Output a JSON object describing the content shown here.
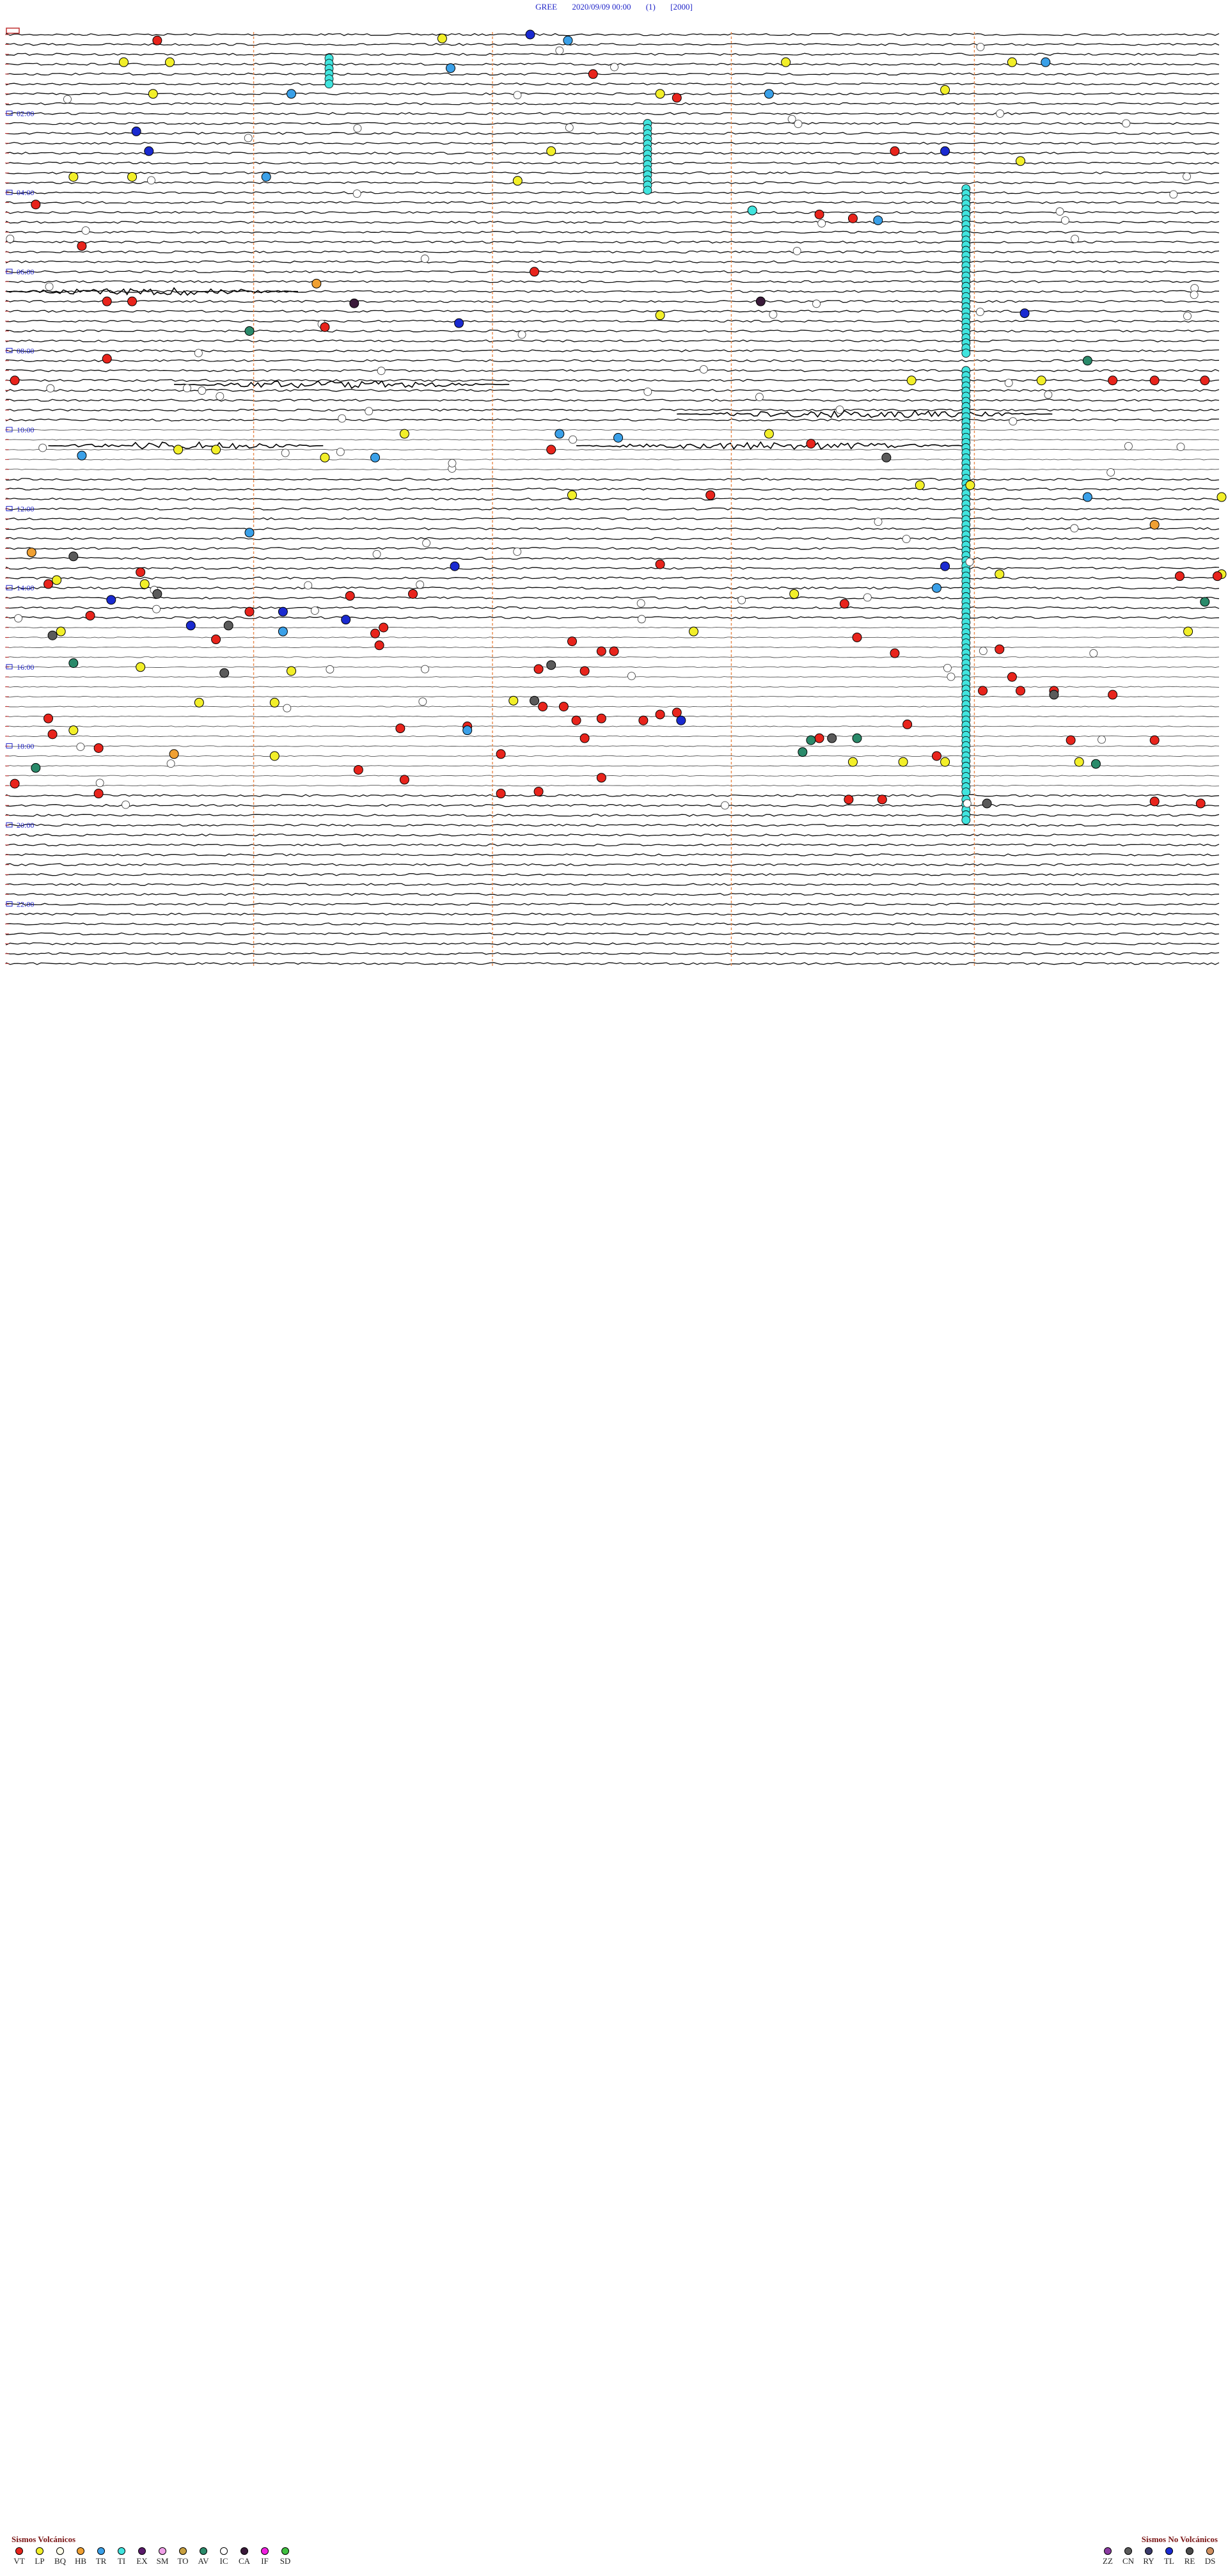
{
  "header": {
    "station": "GREE",
    "datetime": "2020/09/09 00:00",
    "component": "(1)",
    "scale": "[2000]"
  },
  "chart_data": {
    "type": "helicorder",
    "station": "GREE",
    "start": "2020/09/09 00:00",
    "lines_per_hour": 4,
    "hour_labels": [
      "02:00",
      "04:00",
      "06:00",
      "08:00",
      "10:00",
      "12:00",
      "14:00",
      "16:00",
      "18:00",
      "20:00",
      "22:00"
    ],
    "minute_ticks": [
      15,
      30,
      45
    ],
    "event_colors": {
      "VT": "#e8241c",
      "LP": "#f2ef29",
      "BQ": "#fdfde8",
      "HB": "#f0a032",
      "TR": "#3aa0e8",
      "TI": "#40e4de",
      "EX": "#5a1a6a",
      "SM": "#f0a0e8",
      "TO": "#c8a040",
      "AV": "#2a8a6a",
      "IC": "#ffffff",
      "CA": "#3a1a3a",
      "IF": "#f020e0",
      "SD": "#40c040",
      "ZZ": "#8a3aa0",
      "CN": "#5a5a5a",
      "RY": "#3a3a6a",
      "TL": "#1a2ad0",
      "RE": "#4a4a4a",
      "DS": "#d09060"
    },
    "events": [
      {
        "type": "VT",
        "hour": 0.15,
        "minute": 18.0
      },
      {
        "type": "TL",
        "hour": 0.0,
        "minute": 62.5
      },
      {
        "type": "TR",
        "hour": 0.15,
        "minute": 67.0
      },
      {
        "type": "LP",
        "hour": 0.1,
        "minute": 52.0
      },
      {
        "type": "LP",
        "hour": 0.7,
        "minute": 14.0
      },
      {
        "type": "LP",
        "hour": 0.7,
        "minute": 19.5
      },
      {
        "type": "LP",
        "hour": 0.7,
        "minute": 93.0
      },
      {
        "type": "LP",
        "hour": 0.7,
        "minute": 120.0
      },
      {
        "type": "TR",
        "hour": 0.7,
        "minute": 124.0
      },
      {
        "type": "VT",
        "hour": 1.0,
        "minute": 70.0
      },
      {
        "type": "TR",
        "hour": 0.85,
        "minute": 53.0
      },
      {
        "type": "LP",
        "hour": 1.5,
        "minute": 17.5
      },
      {
        "type": "TR",
        "hour": 1.5,
        "minute": 34.0
      },
      {
        "type": "VT",
        "hour": 1.6,
        "minute": 80.0
      },
      {
        "type": "LP",
        "hour": 1.5,
        "minute": 78.0
      },
      {
        "type": "TR",
        "hour": 1.5,
        "minute": 91.0
      },
      {
        "type": "LP",
        "hour": 1.4,
        "minute": 112.0
      },
      {
        "type": "TL",
        "hour": 2.45,
        "minute": 15.5
      },
      {
        "type": "TL",
        "hour": 2.95,
        "minute": 17.0
      },
      {
        "type": "VT",
        "hour": 2.95,
        "minute": 106.0
      },
      {
        "type": "TL",
        "hour": 2.95,
        "minute": 112.0
      },
      {
        "type": "LP",
        "hour": 2.95,
        "minute": 65.0
      },
      {
        "type": "LP",
        "hour": 3.6,
        "minute": 8.0
      },
      {
        "type": "LP",
        "hour": 3.6,
        "minute": 15.0
      },
      {
        "type": "TR",
        "hour": 3.6,
        "minute": 31.0
      },
      {
        "type": "LP",
        "hour": 3.7,
        "minute": 61.0
      },
      {
        "type": "LP",
        "hour": 3.2,
        "minute": 121.0
      },
      {
        "type": "VT",
        "hour": 4.3,
        "minute": 3.5
      },
      {
        "type": "VT",
        "hour": 4.55,
        "minute": 97.0
      },
      {
        "type": "VT",
        "hour": 4.65,
        "minute": 101.0
      },
      {
        "type": "TR",
        "hour": 4.7,
        "minute": 104.0
      },
      {
        "type": "TI",
        "hour": 4.45,
        "minute": 89.0
      },
      {
        "type": "VT",
        "hour": 5.35,
        "minute": 9.0
      },
      {
        "type": "VT",
        "hour": 6.0,
        "minute": 63.0
      },
      {
        "type": "HB",
        "hour": 6.3,
        "minute": 37.0
      },
      {
        "type": "VT",
        "hour": 6.75,
        "minute": 12.0
      },
      {
        "type": "VT",
        "hour": 6.75,
        "minute": 15.0
      },
      {
        "type": "CA",
        "hour": 6.8,
        "minute": 41.5
      },
      {
        "type": "CA",
        "hour": 6.75,
        "minute": 90.0
      },
      {
        "type": "TL",
        "hour": 7.05,
        "minute": 121.5
      },
      {
        "type": "LP",
        "hour": 7.1,
        "minute": 78.0
      },
      {
        "type": "TL",
        "hour": 7.3,
        "minute": 54.0
      },
      {
        "type": "VT",
        "hour": 7.4,
        "minute": 38.0
      },
      {
        "type": "AV",
        "hour": 7.5,
        "minute": 29.0
      },
      {
        "type": "VT",
        "hour": 8.2,
        "minute": 12.0
      },
      {
        "type": "AV",
        "hour": 8.25,
        "minute": 129.0
      },
      {
        "type": "VT",
        "hour": 8.75,
        "minute": 1.0
      },
      {
        "type": "VT",
        "hour": 8.75,
        "minute": 132.0
      },
      {
        "type": "VT",
        "hour": 8.75,
        "minute": 137.0
      },
      {
        "type": "VT",
        "hour": 8.75,
        "minute": 143.0
      },
      {
        "type": "LP",
        "hour": 8.75,
        "minute": 108.0
      },
      {
        "type": "LP",
        "hour": 8.75,
        "minute": 123.5
      },
      {
        "type": "LP",
        "hour": 10.1,
        "minute": 47.5
      },
      {
        "type": "TR",
        "hour": 10.1,
        "minute": 66.0
      },
      {
        "type": "TR",
        "hour": 10.2,
        "minute": 73.0
      },
      {
        "type": "LP",
        "hour": 10.1,
        "minute": 91.0
      },
      {
        "type": "VT",
        "hour": 10.35,
        "minute": 96.0
      },
      {
        "type": "LP",
        "hour": 10.5,
        "minute": 20.5
      },
      {
        "type": "LP",
        "hour": 10.5,
        "minute": 25.0
      },
      {
        "type": "VT",
        "hour": 10.5,
        "minute": 65.0
      },
      {
        "type": "TR",
        "hour": 10.65,
        "minute": 9.0
      },
      {
        "type": "TR",
        "hour": 10.7,
        "minute": 44.0
      },
      {
        "type": "LP",
        "hour": 10.7,
        "minute": 38.0
      },
      {
        "type": "CN",
        "hour": 10.7,
        "minute": 105.0
      },
      {
        "type": "LP",
        "hour": 11.4,
        "minute": 109.0
      },
      {
        "type": "LP",
        "hour": 11.4,
        "minute": 115.0
      },
      {
        "type": "VT",
        "hour": 11.65,
        "minute": 84.0
      },
      {
        "type": "LP",
        "hour": 11.65,
        "minute": 67.5
      },
      {
        "type": "TR",
        "hour": 11.7,
        "minute": 129.0
      },
      {
        "type": "LP",
        "hour": 11.7,
        "minute": 145.0
      },
      {
        "type": "HB",
        "hour": 12.4,
        "minute": 137.0
      },
      {
        "type": "TR",
        "hour": 12.6,
        "minute": 29.0
      },
      {
        "type": "HB",
        "hour": 13.1,
        "minute": 3.0
      },
      {
        "type": "CN",
        "hour": 13.2,
        "minute": 8.0
      },
      {
        "type": "TL",
        "hour": 13.45,
        "minute": 53.5
      },
      {
        "type": "VT",
        "hour": 13.4,
        "minute": 78.0
      },
      {
        "type": "TL",
        "hour": 13.45,
        "minute": 112.0
      },
      {
        "type": "VT",
        "hour": 13.6,
        "minute": 16.0
      },
      {
        "type": "LP",
        "hour": 13.8,
        "minute": 6.0
      },
      {
        "type": "LP",
        "hour": 13.9,
        "minute": 16.5
      },
      {
        "type": "VT",
        "hour": 13.9,
        "minute": 5.0
      },
      {
        "type": "TR",
        "hour": 14.0,
        "minute": 111.0
      },
      {
        "type": "LP",
        "hour": 13.65,
        "minute": 118.5
      },
      {
        "type": "LP",
        "hour": 13.65,
        "minute": 145.0
      },
      {
        "type": "VT",
        "hour": 13.7,
        "minute": 140.0
      },
      {
        "type": "VT",
        "hour": 13.7,
        "minute": 144.5
      },
      {
        "type": "CN",
        "hour": 14.15,
        "minute": 18.0
      },
      {
        "type": "VT",
        "hour": 14.2,
        "minute": 41.0
      },
      {
        "type": "VT",
        "hour": 14.15,
        "minute": 48.5
      },
      {
        "type": "TL",
        "hour": 14.3,
        "minute": 12.5
      },
      {
        "type": "LP",
        "hour": 14.15,
        "minute": 94.0
      },
      {
        "type": "VT",
        "hour": 14.4,
        "minute": 100.0
      },
      {
        "type": "AV",
        "hour": 14.35,
        "minute": 143.0
      },
      {
        "type": "VT",
        "hour": 14.6,
        "minute": 29.0
      },
      {
        "type": "TL",
        "hour": 14.6,
        "minute": 33.0
      },
      {
        "type": "TL",
        "hour": 14.8,
        "minute": 40.5
      },
      {
        "type": "VT",
        "hour": 14.7,
        "minute": 10.0
      },
      {
        "type": "TL",
        "hour": 14.95,
        "minute": 22.0
      },
      {
        "type": "CN",
        "hour": 14.95,
        "minute": 26.5
      },
      {
        "type": "VT",
        "hour": 15.0,
        "minute": 45.0
      },
      {
        "type": "LP",
        "hour": 15.1,
        "minute": 6.5
      },
      {
        "type": "CN",
        "hour": 15.2,
        "minute": 5.5
      },
      {
        "type": "TR",
        "hour": 15.1,
        "minute": 33.0
      },
      {
        "type": "VT",
        "hour": 15.15,
        "minute": 44.0
      },
      {
        "type": "VT",
        "hour": 15.3,
        "minute": 25.0
      },
      {
        "type": "VT",
        "hour": 15.25,
        "minute": 101.5
      },
      {
        "type": "LP",
        "hour": 15.1,
        "minute": 82.0
      },
      {
        "type": "LP",
        "hour": 15.1,
        "minute": 141.0
      },
      {
        "type": "VT",
        "hour": 15.35,
        "minute": 67.5
      },
      {
        "type": "VT",
        "hour": 15.45,
        "minute": 44.5
      },
      {
        "type": "VT",
        "hour": 15.6,
        "minute": 71.0
      },
      {
        "type": "VT",
        "hour": 15.6,
        "minute": 72.5
      },
      {
        "type": "VT",
        "hour": 15.65,
        "minute": 106.0
      },
      {
        "type": "VT",
        "hour": 15.55,
        "minute": 118.5
      },
      {
        "type": "AV",
        "hour": 15.9,
        "minute": 8.0
      },
      {
        "type": "LP",
        "hour": 16.0,
        "minute": 16.0
      },
      {
        "type": "CN",
        "hour": 16.15,
        "minute": 26.0
      },
      {
        "type": "LP",
        "hour": 16.1,
        "minute": 34.0
      },
      {
        "type": "VT",
        "hour": 16.05,
        "minute": 63.5
      },
      {
        "type": "VT",
        "hour": 16.1,
        "minute": 69.0
      },
      {
        "type": "CN",
        "hour": 15.95,
        "minute": 65.0
      },
      {
        "type": "VT",
        "hour": 16.25,
        "minute": 120.0
      },
      {
        "type": "VT",
        "hour": 16.6,
        "minute": 116.5
      },
      {
        "type": "VT",
        "hour": 16.6,
        "minute": 121.0
      },
      {
        "type": "VT",
        "hour": 16.6,
        "minute": 125.0
      },
      {
        "type": "VT",
        "hour": 16.7,
        "minute": 132.0
      },
      {
        "type": "CN",
        "hour": 16.7,
        "minute": 125.0
      },
      {
        "type": "LP",
        "hour": 16.9,
        "minute": 23.0
      },
      {
        "type": "LP",
        "hour": 16.9,
        "minute": 32.0
      },
      {
        "type": "LP",
        "hour": 16.85,
        "minute": 60.5
      },
      {
        "type": "CN",
        "hour": 16.85,
        "minute": 63.0
      },
      {
        "type": "VT",
        "hour": 17.0,
        "minute": 64.0
      },
      {
        "type": "VT",
        "hour": 17.0,
        "minute": 66.5
      },
      {
        "type": "VT",
        "hour": 17.3,
        "minute": 5.0
      },
      {
        "type": "VT",
        "hour": 17.35,
        "minute": 68.0
      },
      {
        "type": "VT",
        "hour": 17.3,
        "minute": 71.0
      },
      {
        "type": "VT",
        "hour": 17.35,
        "minute": 76.0
      },
      {
        "type": "VT",
        "hour": 17.2,
        "minute": 78.0
      },
      {
        "type": "VT",
        "hour": 17.15,
        "minute": 80.0
      },
      {
        "type": "TL",
        "hour": 17.35,
        "minute": 80.5
      },
      {
        "type": "VT",
        "hour": 17.45,
        "minute": 107.5
      },
      {
        "type": "VT",
        "hour": 17.55,
        "minute": 47.0
      },
      {
        "type": "VT",
        "hour": 17.5,
        "minute": 55.0
      },
      {
        "type": "LP",
        "hour": 17.6,
        "minute": 8.0
      },
      {
        "type": "TR",
        "hour": 17.6,
        "minute": 55.0
      },
      {
        "type": "VT",
        "hour": 17.7,
        "minute": 5.5
      },
      {
        "type": "VT",
        "hour": 17.8,
        "minute": 69.0
      },
      {
        "type": "VT",
        "hour": 17.8,
        "minute": 97.0
      },
      {
        "type": "CN",
        "hour": 17.8,
        "minute": 98.5
      },
      {
        "type": "AV",
        "hour": 17.85,
        "minute": 96.0
      },
      {
        "type": "AV",
        "hour": 17.8,
        "minute": 101.5
      },
      {
        "type": "VT",
        "hour": 17.85,
        "minute": 127.0
      },
      {
        "type": "VT",
        "hour": 17.85,
        "minute": 137.0
      },
      {
        "type": "VT",
        "hour": 18.05,
        "minute": 11.0
      },
      {
        "type": "HB",
        "hour": 18.2,
        "minute": 20.0
      },
      {
        "type": "LP",
        "hour": 18.25,
        "minute": 32.0
      },
      {
        "type": "VT",
        "hour": 18.2,
        "minute": 59.0
      },
      {
        "type": "AV",
        "hour": 18.15,
        "minute": 95.0
      },
      {
        "type": "VT",
        "hour": 18.25,
        "minute": 111.0
      },
      {
        "type": "LP",
        "hour": 18.4,
        "minute": 101.0
      },
      {
        "type": "LP",
        "hour": 18.4,
        "minute": 107.0
      },
      {
        "type": "LP",
        "hour": 18.4,
        "minute": 112.0
      },
      {
        "type": "LP",
        "hour": 18.4,
        "minute": 128.0
      },
      {
        "type": "AV",
        "hour": 18.45,
        "minute": 130.0
      },
      {
        "type": "AV",
        "hour": 18.55,
        "minute": 3.5
      },
      {
        "type": "VT",
        "hour": 18.6,
        "minute": 42.0
      },
      {
        "type": "VT",
        "hour": 18.85,
        "minute": 47.5
      },
      {
        "type": "VT",
        "hour": 18.8,
        "minute": 71.0
      },
      {
        "type": "VT",
        "hour": 18.95,
        "minute": 1.0
      },
      {
        "type": "VT",
        "hour": 19.2,
        "minute": 11.0
      },
      {
        "type": "VT",
        "hour": 19.2,
        "minute": 59.0
      },
      {
        "type": "VT",
        "hour": 19.15,
        "minute": 63.5
      },
      {
        "type": "VT",
        "hour": 19.35,
        "minute": 100.5
      },
      {
        "type": "VT",
        "hour": 19.35,
        "minute": 104.5
      },
      {
        "type": "VT",
        "hour": 19.4,
        "minute": 137.0
      },
      {
        "type": "VT",
        "hour": 19.45,
        "minute": 142.5
      },
      {
        "type": "CN",
        "hour": 19.45,
        "minute": 117.0
      }
    ],
    "tremor_columns_minute": [
      29.5,
      58.0,
      86.5,
      115.5
    ]
  },
  "legend": {
    "volcanic_title": "Sismos Volcánicos",
    "volcanic": [
      {
        "code": "VT",
        "color": "#e8241c"
      },
      {
        "code": "LP",
        "color": "#f2ef29"
      },
      {
        "code": "BQ",
        "color": "#fdfde8"
      },
      {
        "code": "HB",
        "color": "#f0a032"
      },
      {
        "code": "TR",
        "color": "#3aa0e8"
      },
      {
        "code": "TI",
        "color": "#40e4de"
      },
      {
        "code": "EX",
        "color": "#5a1a6a"
      },
      {
        "code": "SM",
        "color": "#f0a0e8"
      },
      {
        "code": "TO",
        "color": "#c8a040"
      },
      {
        "code": "AV",
        "color": "#2a8a6a"
      },
      {
        "code": "IC",
        "color": "#ffffff"
      },
      {
        "code": "CA",
        "color": "#3a1a3a"
      },
      {
        "code": "IF",
        "color": "#f020e0"
      },
      {
        "code": "SD",
        "color": "#40c040"
      }
    ],
    "nonvolcanic_title": "Sismos No Volcánicos",
    "nonvolcanic": [
      {
        "code": "ZZ",
        "color": "#8a3aa0"
      },
      {
        "code": "CN",
        "color": "#5a5a5a"
      },
      {
        "code": "RY",
        "color": "#3a3a6a"
      },
      {
        "code": "TL",
        "color": "#1a2ad0"
      },
      {
        "code": "RE",
        "color": "#4a4a4a"
      },
      {
        "code": "DS",
        "color": "#d09060"
      }
    ]
  }
}
